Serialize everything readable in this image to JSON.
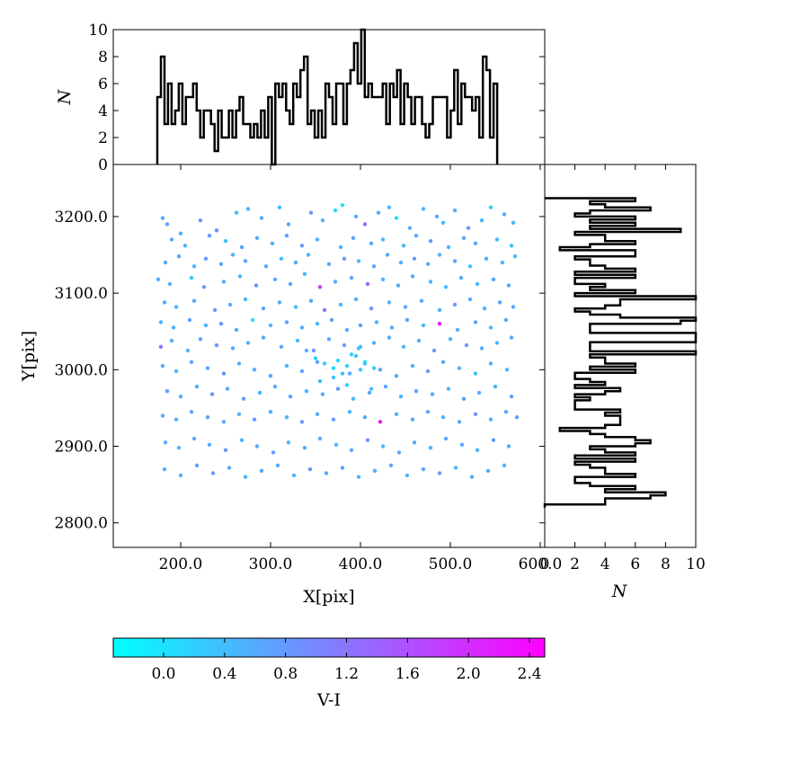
{
  "chart_data": [
    {
      "type": "scatter",
      "name": "main",
      "xlabel": "X[pix]",
      "ylabel": "Y[pix]",
      "xlim": [
        125,
        605
      ],
      "ylim": [
        2768,
        3268
      ],
      "xticks": [
        200,
        300,
        400,
        500,
        600
      ],
      "xtick_labels": [
        "200.0",
        "300.0",
        "400.0",
        "500.0",
        "600.0"
      ],
      "yticks": [
        2800,
        2900,
        3000,
        3100,
        3200
      ],
      "ytick_labels": [
        "2800.0",
        "2900.0",
        "3000.0",
        "3100.0",
        "3200.0"
      ],
      "color_variable": "V-I",
      "colormap": [
        "#00ffff",
        "#ff00ff"
      ],
      "points": {
        "x": [
          180,
          185,
          200,
          222,
          240,
          262,
          275,
          290,
          310,
          320,
          345,
          358,
          372,
          380,
          395,
          405,
          420,
          432,
          440,
          455,
          470,
          485,
          492,
          505,
          520,
          535,
          545,
          560,
          570,
          190,
          205,
          232,
          250,
          268,
          285,
          302,
          318,
          335,
          352,
          378,
          392,
          412,
          425,
          448,
          462,
          478,
          498,
          515,
          528,
          552,
          568,
          183,
          198,
          215,
          228,
          245,
          258,
          272,
          295,
          312,
          328,
          342,
          365,
          382,
          398,
          415,
          430,
          445,
          460,
          475,
          488,
          505,
          522,
          540,
          558,
          572,
          175,
          188,
          212,
          226,
          248,
          266,
          284,
          305,
          322,
          338,
          355,
          372,
          390,
          408,
          425,
          442,
          458,
          478,
          495,
          512,
          530,
          548,
          565,
          182,
          195,
          215,
          238,
          255,
          272,
          292,
          310,
          328,
          345,
          360,
          378,
          395,
          412,
          432,
          450,
          468,
          488,
          505,
          522,
          538,
          555,
          570,
          178,
          192,
          210,
          228,
          245,
          262,
          280,
          300,
          318,
          335,
          352,
          368,
          385,
          400,
          418,
          435,
          452,
          470,
          488,
          508,
          528,
          545,
          562,
          178,
          190,
          208,
          222,
          240,
          258,
          275,
          292,
          312,
          330,
          348,
          365,
          382,
          398,
          415,
          432,
          448,
          465,
          482,
          500,
          518,
          535,
          552,
          568,
          180,
          195,
          212,
          230,
          248,
          265,
          282,
          300,
          318,
          335,
          352,
          370,
          388,
          405,
          422,
          440,
          458,
          475,
          492,
          510,
          528,
          545,
          563,
          185,
          200,
          218,
          235,
          252,
          270,
          288,
          305,
          322,
          340,
          358,
          375,
          392,
          410,
          428,
          445,
          462,
          480,
          498,
          515,
          532,
          550,
          568,
          180,
          195,
          212,
          230,
          248,
          265,
          282,
          300,
          318,
          335,
          352,
          370,
          388,
          405,
          422,
          440,
          458,
          475,
          492,
          510,
          528,
          545,
          562,
          574,
          183,
          198,
          215,
          232,
          250,
          268,
          285,
          303,
          320,
          338,
          355,
          373,
          390,
          408,
          425,
          443,
          460,
          478,
          495,
          513,
          530,
          548,
          565,
          182,
          200,
          218,
          236,
          254,
          272,
          290,
          308,
          326,
          344,
          362,
          380,
          398,
          416,
          434,
          452,
          470,
          488,
          506,
          524,
          542,
          560,
          350,
          360,
          375,
          385,
          395,
          405,
          415,
          380,
          390,
          400,
          340,
          355,
          370,
          385,
          400,
          412
        ],
        "y": [
          3198,
          3190,
          3178,
          3195,
          3182,
          3205,
          3210,
          3198,
          3212,
          3190,
          3205,
          3195,
          3208,
          3215,
          3200,
          3190,
          3205,
          3212,
          3198,
          3185,
          3210,
          3200,
          3192,
          3208,
          3185,
          3195,
          3212,
          3203,
          3192,
          3170,
          3162,
          3175,
          3168,
          3160,
          3172,
          3165,
          3175,
          3162,
          3170,
          3160,
          3172,
          3165,
          3170,
          3162,
          3175,
          3168,
          3160,
          3172,
          3165,
          3170,
          3162,
          3140,
          3148,
          3135,
          3145,
          3138,
          3150,
          3142,
          3135,
          3145,
          3140,
          3150,
          3138,
          3145,
          3142,
          3135,
          3150,
          3140,
          3145,
          3138,
          3150,
          3142,
          3135,
          3145,
          3140,
          3148,
          3118,
          3112,
          3120,
          3108,
          3115,
          3122,
          3110,
          3118,
          3112,
          3125,
          3108,
          3115,
          3120,
          3112,
          3118,
          3110,
          3122,
          3115,
          3108,
          3120,
          3112,
          3118,
          3110,
          3088,
          3082,
          3090,
          3078,
          3085,
          3092,
          3080,
          3088,
          3082,
          3090,
          3078,
          3085,
          3092,
          3080,
          3088,
          3082,
          3090,
          3078,
          3085,
          3092,
          3080,
          3088,
          3082,
          3062,
          3055,
          3065,
          3058,
          3060,
          3052,
          3065,
          3058,
          3062,
          3055,
          3060,
          3065,
          3052,
          3058,
          3062,
          3055,
          3065,
          3058,
          3060,
          3052,
          3062,
          3055,
          3065,
          3030,
          3038,
          3025,
          3040,
          3032,
          3028,
          3035,
          3042,
          3030,
          3038,
          3025,
          3040,
          3032,
          3028,
          3035,
          3042,
          3030,
          3038,
          3025,
          3040,
          3032,
          3028,
          3035,
          3042,
          3005,
          2998,
          3010,
          3002,
          2995,
          3008,
          3000,
          2992,
          3005,
          2998,
          3010,
          3002,
          2995,
          3008,
          3000,
          2992,
          3005,
          2998,
          3010,
          3002,
          2995,
          3008,
          3000,
          2972,
          2965,
          2978,
          2968,
          2975,
          2962,
          2970,
          2978,
          2965,
          2972,
          2968,
          2975,
          2962,
          2970,
          2978,
          2965,
          2972,
          2968,
          2975,
          2962,
          2970,
          2978,
          2965,
          2940,
          2935,
          2945,
          2938,
          2932,
          2942,
          2935,
          2945,
          2938,
          2932,
          2942,
          2935,
          2945,
          2938,
          2932,
          2942,
          2935,
          2945,
          2938,
          2932,
          2942,
          2935,
          2945,
          2938,
          2905,
          2898,
          2910,
          2902,
          2895,
          2908,
          2900,
          2892,
          2905,
          2898,
          2910,
          2902,
          2895,
          2908,
          2900,
          2892,
          2905,
          2898,
          2910,
          2902,
          2895,
          2908,
          2900,
          2870,
          2862,
          2875,
          2865,
          2872,
          2860,
          2868,
          2875,
          2862,
          2870,
          2865,
          2872,
          2860,
          2868,
          2875,
          2862,
          2870,
          2865,
          2872,
          2860,
          2868,
          2875,
          3015,
          3008,
          3012,
          3005,
          3018,
          3010,
          3002,
          2995,
          3020,
          3000,
          3025,
          2985,
          2990,
          2980,
          3030,
          2975
        ],
        "color": [
          0.6,
          0.7,
          0.5,
          0.8,
          0.9,
          0.4,
          0.5,
          0.6,
          0.3,
          0.7,
          0.8,
          0.5,
          0.1,
          0.0,
          0.6,
          1.3,
          0.7,
          0.5,
          0.0,
          0.6,
          0.5,
          0.7,
          0.4,
          0.6,
          0.8,
          0.5,
          0.2,
          0.6,
          0.5,
          0.6,
          0.5,
          0.8,
          0.4,
          0.7,
          0.6,
          0.5,
          0.7,
          0.8,
          0.6,
          0.5,
          0.7,
          0.6,
          0.4,
          0.5,
          0.6,
          0.8,
          0.5,
          0.7,
          0.6,
          0.5,
          0.3,
          0.6,
          0.7,
          0.5,
          0.8,
          0.6,
          0.5,
          0.7,
          0.6,
          0.4,
          0.7,
          0.5,
          0.6,
          0.8,
          0.5,
          0.7,
          0.6,
          0.5,
          0.8,
          0.6,
          0.5,
          0.7,
          0.3,
          0.6,
          0.5,
          0.4,
          0.6,
          0.5,
          0.2,
          0.7,
          0.6,
          0.5,
          0.8,
          0.6,
          0.7,
          0.5,
          1.7,
          0.6,
          0.7,
          1.4,
          0.5,
          0.6,
          0.7,
          0.5,
          0.4,
          0.6,
          0.5,
          0.7,
          0.6,
          0.6,
          0.5,
          0.7,
          0.8,
          0.6,
          0.5,
          0.7,
          0.6,
          0.4,
          0.7,
          1.2,
          0.5,
          0.6,
          0.8,
          0.5,
          0.7,
          0.6,
          0.5,
          0.8,
          0.6,
          0.5,
          0.7,
          0.6,
          0.5,
          0.6,
          0.7,
          0.5,
          0.8,
          0.6,
          0.0,
          0.5,
          0.7,
          0.6,
          0.5,
          0.8,
          0.6,
          0.7,
          0.5,
          0.6,
          0.7,
          0.5,
          2.2,
          0.6,
          0.7,
          0.5,
          0.6,
          1.3,
          0.6,
          0.5,
          0.7,
          0.8,
          0.6,
          0.5,
          0.7,
          0.6,
          0.5,
          0.8,
          0.6,
          0.7,
          0.5,
          0.6,
          0.7,
          0.5,
          0.6,
          0.8,
          0.5,
          0.7,
          0.6,
          0.5,
          0.6,
          0.6,
          0.5,
          0.7,
          0.6,
          0.8,
          0.5,
          0.6,
          0.7,
          0.5,
          0.6,
          0.7,
          0.1,
          0.6,
          0.5,
          0.7,
          0.6,
          0.5,
          0.8,
          0.6,
          0.5,
          0.3,
          0.6,
          0.5,
          0.7,
          0.6,
          0.5,
          0.8,
          0.6,
          0.7,
          0.5,
          0.6,
          0.7,
          0.5,
          0.6,
          0.8,
          0.5,
          0.7,
          0.6,
          0.5,
          0.7,
          0.6,
          0.5,
          0.8,
          0.6,
          0.5,
          0.7,
          0.6,
          0.5,
          0.7,
          0.8,
          0.6,
          0.5,
          0.7,
          0.6,
          0.5,
          0.8,
          0.6,
          0.7,
          0.5,
          0.6,
          2.3,
          0.5,
          0.6,
          0.7,
          0.5,
          0.6,
          0.8,
          0.5,
          0.6,
          0.7,
          0.6,
          0.5,
          0.7,
          0.6,
          0.8,
          0.5,
          0.6,
          0.7,
          0.5,
          0.6,
          0.7,
          0.5,
          0.6,
          0.8,
          0.5,
          0.7,
          0.6,
          0.5,
          0.7,
          0.6,
          0.5,
          0.8,
          0.6,
          0.6,
          0.5,
          0.7,
          0.8,
          0.6,
          0.5,
          0.7,
          0.6,
          0.5,
          0.8,
          0.6,
          0.7,
          0.5,
          0.6,
          0.7,
          0.5,
          0.6,
          0.8,
          0.5,
          0.7,
          0.6,
          0.5,
          0.2,
          0.3,
          0.1,
          0.2,
          0.3,
          0.1,
          0.2,
          0.4,
          0.2,
          0.3,
          0.5,
          0.4,
          0.3,
          0.2,
          0.3,
          0.4
        ]
      }
    },
    {
      "type": "histogram",
      "name": "top",
      "orientation": "vertical",
      "xlim": [
        125,
        605
      ],
      "ylim": [
        0,
        10
      ],
      "ylabel": "N",
      "yticks": [
        0,
        2,
        4,
        6,
        8,
        10
      ],
      "ytick_labels": [
        "0",
        "2",
        "4",
        "6",
        "8",
        "10"
      ],
      "bin_start": 174,
      "bin_width": 3.98,
      "counts": [
        5,
        8,
        3,
        6,
        3,
        4,
        6,
        3,
        5,
        5,
        6,
        4,
        2,
        4,
        4,
        3,
        1,
        4,
        2,
        2,
        4,
        2,
        4,
        5,
        3,
        3,
        2,
        3,
        2,
        4,
        2,
        5,
        0,
        6,
        5,
        6,
        4,
        3,
        6,
        5,
        7,
        8,
        3,
        4,
        2,
        4,
        2,
        6,
        5,
        3,
        6,
        6,
        3,
        6,
        7,
        9,
        6,
        10,
        5,
        6,
        5,
        5,
        5,
        6,
        3,
        6,
        5,
        7,
        3,
        6,
        5,
        3,
        5,
        5,
        3,
        2,
        3,
        5,
        5,
        5,
        5,
        2,
        4,
        7,
        3,
        6,
        5,
        5,
        4,
        5,
        2,
        8,
        7,
        2,
        6
      ]
    },
    {
      "type": "histogram",
      "name": "right",
      "orientation": "horizontal",
      "ylim": [
        2768,
        3268
      ],
      "xlim": [
        0,
        10
      ],
      "xlabel": "N",
      "xticks": [
        0,
        2,
        4,
        6,
        8,
        10
      ],
      "xtick_labels": [
        "0",
        "2",
        "4",
        "6",
        "8",
        "10"
      ],
      "bin_start": 2820,
      "bin_width": 4.0,
      "counts": [
        0,
        4,
        4,
        7,
        8,
        4,
        6,
        3,
        2,
        2,
        6,
        4,
        4,
        3,
        2,
        6,
        2,
        6,
        4,
        3,
        6,
        7,
        6,
        4,
        3,
        1,
        4,
        5,
        5,
        5,
        4,
        5,
        2,
        2,
        2,
        3,
        2,
        4,
        5,
        2,
        4,
        3,
        2,
        2,
        6,
        3,
        6,
        4,
        4,
        3,
        10,
        3,
        3,
        3,
        10,
        10,
        10,
        3,
        3,
        3,
        9,
        10,
        5,
        3,
        2,
        4,
        5,
        5,
        10,
        2,
        6,
        3,
        4,
        2,
        2,
        6,
        2,
        6,
        4,
        3,
        3,
        2,
        6,
        6,
        1,
        3,
        6,
        4,
        4,
        2,
        9,
        3,
        6,
        3,
        6,
        2,
        3,
        7,
        4,
        3,
        6
      ]
    },
    {
      "type": "colorbar",
      "label": "V-I",
      "range": [
        -0.33,
        2.5
      ],
      "ticks": [
        0.0,
        0.4,
        0.8,
        1.2,
        1.6,
        2.0,
        2.4
      ],
      "tick_labels": [
        "0.0",
        "0.4",
        "0.8",
        "1.2",
        "1.6",
        "2.0",
        "2.4"
      ],
      "colors": [
        "#00ffff",
        "#ff00ff"
      ]
    }
  ]
}
